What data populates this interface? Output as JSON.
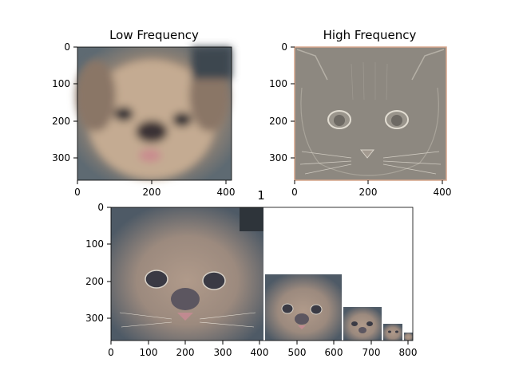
{
  "figure": {
    "suptitle": "1"
  },
  "colors": {
    "axis": "#000000",
    "background": "#ffffff"
  },
  "panels": {
    "low": {
      "title": "Low Frequency",
      "image_content": "blurred-dog-photo",
      "xticks": [
        "0",
        "200",
        "400"
      ],
      "yticks": [
        "0",
        "100",
        "200",
        "300"
      ]
    },
    "high": {
      "title": "High Frequency",
      "image_content": "cat-edge-detail-photo",
      "xticks": [
        "0",
        "200",
        "400"
      ],
      "yticks": [
        "0",
        "100",
        "200",
        "300"
      ]
    },
    "pyramid": {
      "title": "",
      "image_content": "hybrid-cat-dog-image-pyramid",
      "xticks": [
        "0",
        "100",
        "200",
        "300",
        "400",
        "500",
        "600",
        "700",
        "800"
      ],
      "yticks": [
        "0",
        "100",
        "200",
        "300"
      ]
    }
  }
}
